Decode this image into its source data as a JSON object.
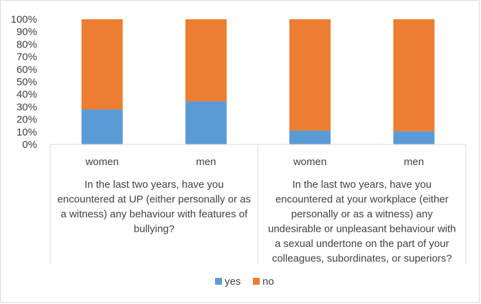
{
  "chart_data": {
    "type": "bar",
    "stacked": "percent",
    "categories": [
      "women",
      "men",
      "women",
      "men"
    ],
    "groups": [
      {
        "label_lines": [
          "In the last two years, have you",
          "encountered at UP (either personally or as",
          "a witness) any behaviour with features of",
          "bullying?"
        ]
      },
      {
        "label_lines": [
          "In the last two years, have you",
          "encountered at your workplace (either",
          "personally or as a witness) any",
          "undesirable or unpleasant behaviour with",
          "a sexual undertone on the part of your",
          "colleagues, subordinates, or superiors?"
        ]
      }
    ],
    "series": [
      {
        "name": "yes",
        "color": "#5b9bd5",
        "values": [
          28,
          34.5,
          11,
          10.5
        ]
      },
      {
        "name": "no",
        "color": "#ed7d31",
        "values": [
          72,
          65.5,
          89,
          89.5
        ]
      }
    ],
    "yticks": [
      "0%",
      "10%",
      "20%",
      "30%",
      "40%",
      "50%",
      "60%",
      "70%",
      "80%",
      "90%",
      "100%"
    ],
    "ylim": [
      0,
      100
    ],
    "legend_position": "bottom",
    "grid": false
  }
}
